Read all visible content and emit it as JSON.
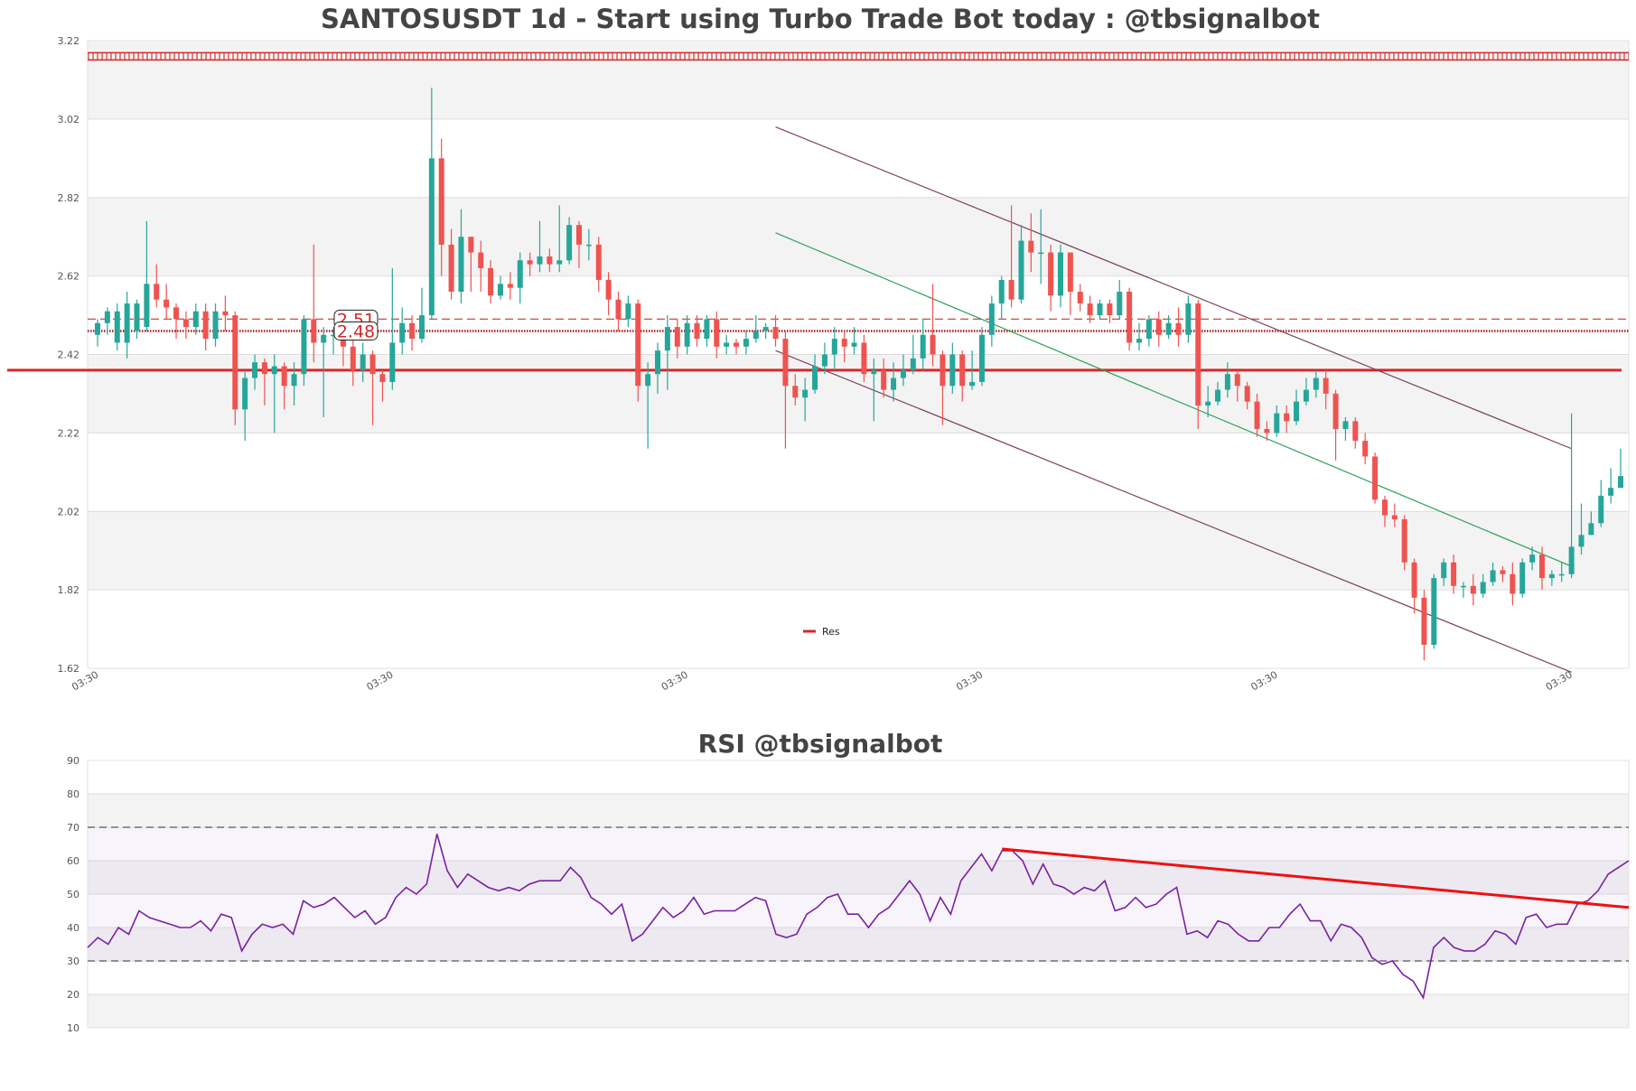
{
  "chart_data": [
    {
      "type": "candlestick",
      "title": "SANTOSUSDT 1d - Start using Turbo Trade Bot today : @tbsignalbot",
      "ylim": [
        1.62,
        3.22
      ],
      "y_ticks": [
        "3.22",
        "3.02",
        "2.82",
        "2.62",
        "2.42",
        "2.22",
        "2.02",
        "1.82",
        "1.62"
      ],
      "x_ticks": [
        "03:30",
        "03:30",
        "03:30",
        "03:30",
        "03:30",
        "03:30"
      ],
      "price_labels": [
        "2.51",
        "2.48"
      ],
      "legend": [
        "Res"
      ],
      "colors": {
        "up": "#26a69a",
        "down": "#ef5350",
        "res_line": "#d62728",
        "channel": "#7b3f5e",
        "trend": "#2ca05a",
        "grid_band": "#f3f3f3"
      },
      "horizontal_levels": {
        "dashed": 2.51,
        "dotted": 2.48,
        "resistance": 2.38,
        "top_band": 3.18
      },
      "candles": [
        [
          2.47,
          2.5,
          2.44,
          2.51
        ],
        [
          2.5,
          2.53,
          2.47,
          2.54
        ],
        [
          2.45,
          2.53,
          2.43,
          2.55
        ],
        [
          2.45,
          2.55,
          2.41,
          2.58
        ],
        [
          2.48,
          2.55,
          2.46,
          2.56
        ],
        [
          2.49,
          2.6,
          2.48,
          2.76
        ],
        [
          2.6,
          2.56,
          2.54,
          2.65
        ],
        [
          2.56,
          2.54,
          2.51,
          2.6
        ],
        [
          2.54,
          2.51,
          2.46,
          2.55
        ],
        [
          2.51,
          2.49,
          2.46,
          2.53
        ],
        [
          2.49,
          2.53,
          2.47,
          2.55
        ],
        [
          2.53,
          2.46,
          2.43,
          2.55
        ],
        [
          2.46,
          2.53,
          2.44,
          2.55
        ],
        [
          2.53,
          2.52,
          2.48,
          2.57
        ],
        [
          2.52,
          2.28,
          2.24,
          2.53
        ],
        [
          2.28,
          2.36,
          2.2,
          2.38
        ],
        [
          2.36,
          2.4,
          2.33,
          2.42
        ],
        [
          2.4,
          2.37,
          2.29,
          2.41
        ],
        [
          2.37,
          2.39,
          2.22,
          2.42
        ],
        [
          2.39,
          2.34,
          2.28,
          2.4
        ],
        [
          2.34,
          2.37,
          2.29,
          2.4
        ],
        [
          2.37,
          2.51,
          2.34,
          2.52
        ],
        [
          2.51,
          2.45,
          2.4,
          2.7
        ],
        [
          2.45,
          2.47,
          2.26,
          2.49
        ],
        [
          2.47,
          2.47,
          2.42,
          2.49
        ],
        [
          2.47,
          2.44,
          2.39,
          2.49
        ],
        [
          2.44,
          2.38,
          2.34,
          2.47
        ],
        [
          2.38,
          2.42,
          2.35,
          2.45
        ],
        [
          2.42,
          2.37,
          2.24,
          2.43
        ],
        [
          2.37,
          2.35,
          2.3,
          2.38
        ],
        [
          2.35,
          2.45,
          2.33,
          2.64
        ],
        [
          2.45,
          2.5,
          2.42,
          2.54
        ],
        [
          2.5,
          2.46,
          2.43,
          2.52
        ],
        [
          2.46,
          2.52,
          2.45,
          2.59
        ],
        [
          2.52,
          2.92,
          2.51,
          3.1
        ],
        [
          2.92,
          2.7,
          2.62,
          2.97
        ],
        [
          2.7,
          2.58,
          2.56,
          2.74
        ],
        [
          2.58,
          2.72,
          2.55,
          2.79
        ],
        [
          2.72,
          2.68,
          2.58,
          2.72
        ],
        [
          2.68,
          2.64,
          2.58,
          2.71
        ],
        [
          2.64,
          2.57,
          2.55,
          2.66
        ],
        [
          2.57,
          2.6,
          2.56,
          2.62
        ],
        [
          2.6,
          2.59,
          2.56,
          2.63
        ],
        [
          2.59,
          2.66,
          2.55,
          2.68
        ],
        [
          2.66,
          2.65,
          2.62,
          2.68
        ],
        [
          2.65,
          2.67,
          2.63,
          2.76
        ],
        [
          2.67,
          2.65,
          2.63,
          2.69
        ],
        [
          2.65,
          2.66,
          2.63,
          2.8
        ],
        [
          2.66,
          2.75,
          2.65,
          2.77
        ],
        [
          2.75,
          2.7,
          2.64,
          2.76
        ],
        [
          2.7,
          2.7,
          2.66,
          2.74
        ],
        [
          2.7,
          2.61,
          2.58,
          2.72
        ],
        [
          2.61,
          2.56,
          2.52,
          2.63
        ],
        [
          2.56,
          2.51,
          2.48,
          2.58
        ],
        [
          2.51,
          2.55,
          2.49,
          2.57
        ],
        [
          2.55,
          2.34,
          2.3,
          2.56
        ],
        [
          2.34,
          2.37,
          2.18,
          2.4
        ],
        [
          2.37,
          2.43,
          2.32,
          2.45
        ],
        [
          2.43,
          2.49,
          2.33,
          2.52
        ],
        [
          2.49,
          2.44,
          2.41,
          2.51
        ],
        [
          2.44,
          2.5,
          2.42,
          2.52
        ],
        [
          2.5,
          2.46,
          2.44,
          2.52
        ],
        [
          2.46,
          2.51,
          2.44,
          2.52
        ],
        [
          2.51,
          2.44,
          2.41,
          2.53
        ],
        [
          2.44,
          2.45,
          2.42,
          2.47
        ],
        [
          2.45,
          2.44,
          2.42,
          2.46
        ],
        [
          2.44,
          2.46,
          2.42,
          2.48
        ],
        [
          2.46,
          2.48,
          2.45,
          2.52
        ],
        [
          2.48,
          2.49,
          2.46,
          2.5
        ],
        [
          2.49,
          2.46,
          2.44,
          2.52
        ],
        [
          2.46,
          2.34,
          2.18,
          2.48
        ],
        [
          2.34,
          2.31,
          2.29,
          2.37
        ],
        [
          2.31,
          2.33,
          2.25,
          2.36
        ],
        [
          2.33,
          2.39,
          2.32,
          2.42
        ],
        [
          2.39,
          2.42,
          2.37,
          2.45
        ],
        [
          2.42,
          2.46,
          2.38,
          2.49
        ],
        [
          2.46,
          2.44,
          2.4,
          2.48
        ],
        [
          2.44,
          2.45,
          2.42,
          2.49
        ],
        [
          2.45,
          2.37,
          2.35,
          2.47
        ],
        [
          2.37,
          2.38,
          2.25,
          2.41
        ],
        [
          2.38,
          2.33,
          2.31,
          2.41
        ],
        [
          2.33,
          2.36,
          2.3,
          2.4
        ],
        [
          2.36,
          2.38,
          2.34,
          2.42
        ],
        [
          2.38,
          2.41,
          2.37,
          2.47
        ],
        [
          2.41,
          2.47,
          2.38,
          2.51
        ],
        [
          2.47,
          2.42,
          2.39,
          2.6
        ],
        [
          2.42,
          2.34,
          2.24,
          2.43
        ],
        [
          2.34,
          2.42,
          2.32,
          2.45
        ],
        [
          2.42,
          2.34,
          2.3,
          2.43
        ],
        [
          2.34,
          2.35,
          2.33,
          2.43
        ],
        [
          2.35,
          2.47,
          2.34,
          2.49
        ],
        [
          2.47,
          2.55,
          2.44,
          2.57
        ],
        [
          2.55,
          2.61,
          2.51,
          2.62
        ],
        [
          2.61,
          2.56,
          2.54,
          2.8
        ],
        [
          2.56,
          2.71,
          2.55,
          2.75
        ],
        [
          2.71,
          2.68,
          2.63,
          2.78
        ],
        [
          2.68,
          2.68,
          2.6,
          2.79
        ],
        [
          2.68,
          2.57,
          2.53,
          2.7
        ],
        [
          2.57,
          2.68,
          2.54,
          2.7
        ],
        [
          2.68,
          2.58,
          2.52,
          2.68
        ],
        [
          2.58,
          2.55,
          2.53,
          2.6
        ],
        [
          2.55,
          2.52,
          2.5,
          2.57
        ],
        [
          2.52,
          2.55,
          2.51,
          2.56
        ],
        [
          2.55,
          2.52,
          2.5,
          2.56
        ],
        [
          2.52,
          2.58,
          2.51,
          2.61
        ],
        [
          2.58,
          2.45,
          2.43,
          2.59
        ],
        [
          2.45,
          2.46,
          2.43,
          2.5
        ],
        [
          2.46,
          2.51,
          2.44,
          2.52
        ],
        [
          2.51,
          2.47,
          2.44,
          2.53
        ],
        [
          2.47,
          2.5,
          2.46,
          2.52
        ],
        [
          2.5,
          2.47,
          2.44,
          2.54
        ],
        [
          2.47,
          2.55,
          2.45,
          2.57
        ],
        [
          2.55,
          2.29,
          2.23,
          2.56
        ],
        [
          2.29,
          2.3,
          2.26,
          2.34
        ],
        [
          2.3,
          2.33,
          2.29,
          2.35
        ],
        [
          2.33,
          2.37,
          2.31,
          2.4
        ],
        [
          2.37,
          2.34,
          2.3,
          2.38
        ],
        [
          2.34,
          2.3,
          2.28,
          2.35
        ],
        [
          2.3,
          2.23,
          2.21,
          2.32
        ],
        [
          2.23,
          2.22,
          2.2,
          2.25
        ],
        [
          2.22,
          2.27,
          2.21,
          2.29
        ],
        [
          2.27,
          2.25,
          2.22,
          2.29
        ],
        [
          2.25,
          2.3,
          2.24,
          2.33
        ],
        [
          2.3,
          2.33,
          2.29,
          2.36
        ],
        [
          2.33,
          2.36,
          2.31,
          2.38
        ],
        [
          2.36,
          2.32,
          2.28,
          2.38
        ],
        [
          2.32,
          2.23,
          2.15,
          2.33
        ],
        [
          2.23,
          2.25,
          2.2,
          2.26
        ],
        [
          2.25,
          2.2,
          2.18,
          2.26
        ],
        [
          2.2,
          2.16,
          2.14,
          2.22
        ],
        [
          2.16,
          2.05,
          2.04,
          2.17
        ],
        [
          2.05,
          2.01,
          1.98,
          2.06
        ],
        [
          2.01,
          2.0,
          1.98,
          2.04
        ],
        [
          2.0,
          1.89,
          1.87,
          2.01
        ],
        [
          1.89,
          1.8,
          1.76,
          1.9
        ],
        [
          1.8,
          1.68,
          1.64,
          1.82
        ],
        [
          1.68,
          1.85,
          1.67,
          1.86
        ],
        [
          1.85,
          1.89,
          1.83,
          1.9
        ],
        [
          1.89,
          1.83,
          1.81,
          1.91
        ],
        [
          1.83,
          1.83,
          1.8,
          1.84
        ],
        [
          1.83,
          1.81,
          1.78,
          1.86
        ],
        [
          1.81,
          1.84,
          1.8,
          1.86
        ],
        [
          1.84,
          1.87,
          1.83,
          1.89
        ],
        [
          1.87,
          1.86,
          1.84,
          1.88
        ],
        [
          1.86,
          1.81,
          1.78,
          1.89
        ],
        [
          1.81,
          1.89,
          1.8,
          1.9
        ],
        [
          1.89,
          1.91,
          1.87,
          1.93
        ],
        [
          1.91,
          1.85,
          1.82,
          1.93
        ],
        [
          1.85,
          1.86,
          1.83,
          1.87
        ],
        [
          1.86,
          1.86,
          1.84,
          1.89
        ],
        [
          1.86,
          1.93,
          1.85,
          2.27
        ],
        [
          1.93,
          1.96,
          1.91,
          2.04
        ],
        [
          1.96,
          1.99,
          1.96,
          2.02
        ],
        [
          1.99,
          2.06,
          1.98,
          2.1
        ],
        [
          2.06,
          2.08,
          2.04,
          2.13
        ],
        [
          2.08,
          2.11,
          2.08,
          2.18
        ]
      ]
    },
    {
      "type": "line",
      "title": "RSI @tbsignalbot",
      "ylim": [
        10,
        90
      ],
      "y_ticks": [
        "90",
        "80",
        "70",
        "60",
        "50",
        "40",
        "30",
        "20",
        "10"
      ],
      "levels": [
        70,
        30
      ],
      "colors": {
        "rsi": "#7b1fa2",
        "trend": "#ee1111"
      },
      "series": [
        {
          "values": [
            34,
            37,
            35,
            40,
            38,
            45,
            43,
            42,
            41,
            40,
            40,
            42,
            39,
            44,
            43,
            33,
            38,
            41,
            40,
            41,
            38,
            48,
            46,
            47,
            49,
            46,
            43,
            45,
            41,
            43,
            49,
            52,
            50,
            53,
            68,
            57,
            52,
            56,
            54,
            52,
            51,
            52,
            51,
            53,
            54,
            54,
            54,
            58,
            55,
            49,
            47,
            44,
            47,
            36,
            38,
            42,
            46,
            43,
            45,
            49,
            44,
            45,
            45,
            45,
            47,
            49,
            48,
            38,
            37,
            38,
            44,
            46,
            49,
            50,
            44,
            44,
            40,
            44,
            46,
            50,
            54,
            50,
            42,
            49,
            44,
            54,
            58,
            62,
            57,
            63,
            63,
            60,
            53,
            59,
            53,
            52,
            50,
            52,
            51,
            54,
            45,
            46,
            49,
            46,
            47,
            50,
            52,
            38,
            39,
            37,
            42,
            41,
            38,
            36,
            36,
            40,
            40,
            44,
            47,
            42,
            42,
            36,
            41,
            40,
            37,
            31,
            29,
            30,
            26,
            24,
            19,
            34,
            37,
            34,
            33,
            33,
            35,
            39,
            38,
            35,
            43,
            44,
            40,
            41,
            41,
            47,
            48,
            51,
            56,
            58,
            60
          ]
        }
      ],
      "trendline": [
        {
          "x": 89,
          "y": 63.5
        },
        {
          "x": 150,
          "y": 46
        }
      ]
    }
  ]
}
